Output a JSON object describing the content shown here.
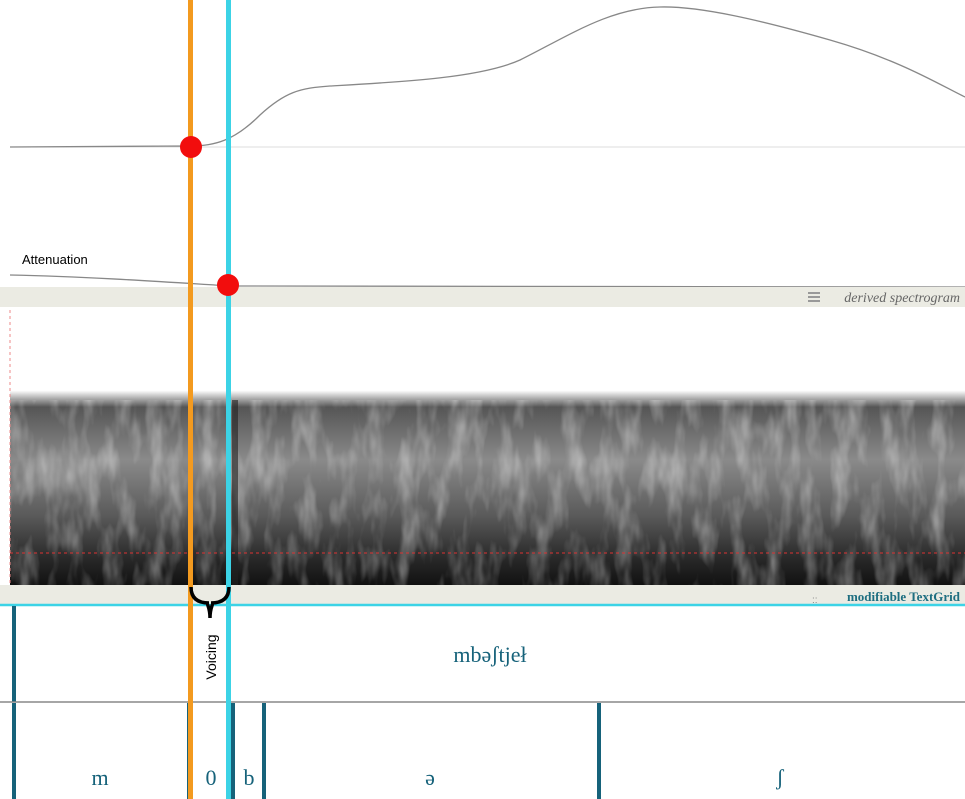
{
  "labels": {
    "attenuation": "Attenuation",
    "voicing": "Voicing"
  },
  "spectrogram": {
    "title": "derived spectrogram"
  },
  "textgrid": {
    "title": "modifiable TextGrid",
    "tiers": [
      {
        "intervals": [
          "mbəʃtjeł"
        ]
      },
      {
        "intervals": [
          "m",
          "0",
          "b",
          "ə",
          "ʃ"
        ]
      }
    ]
  }
}
